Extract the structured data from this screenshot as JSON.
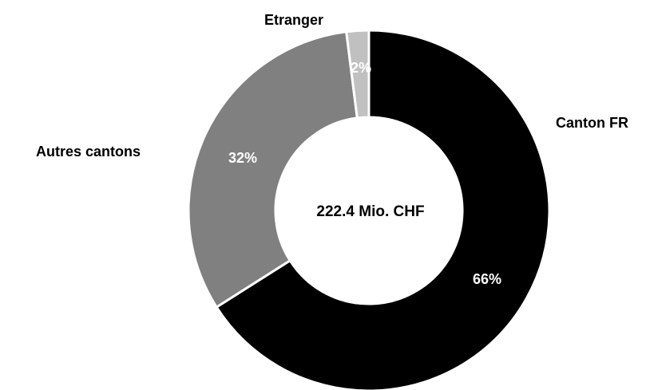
{
  "chart_data": {
    "type": "pie",
    "variant": "donut",
    "center_label": "222.4 Mio. CHF",
    "categories": [
      "Canton FR",
      "Autres cantons",
      "Etranger"
    ],
    "values": [
      66,
      32,
      2
    ],
    "value_labels": [
      "66%",
      "32%",
      "2%"
    ],
    "colors": [
      "#000000",
      "#808080",
      "#c0c0c0"
    ],
    "start_angle_deg": 0,
    "direction": "clockwise",
    "legend": "none"
  }
}
